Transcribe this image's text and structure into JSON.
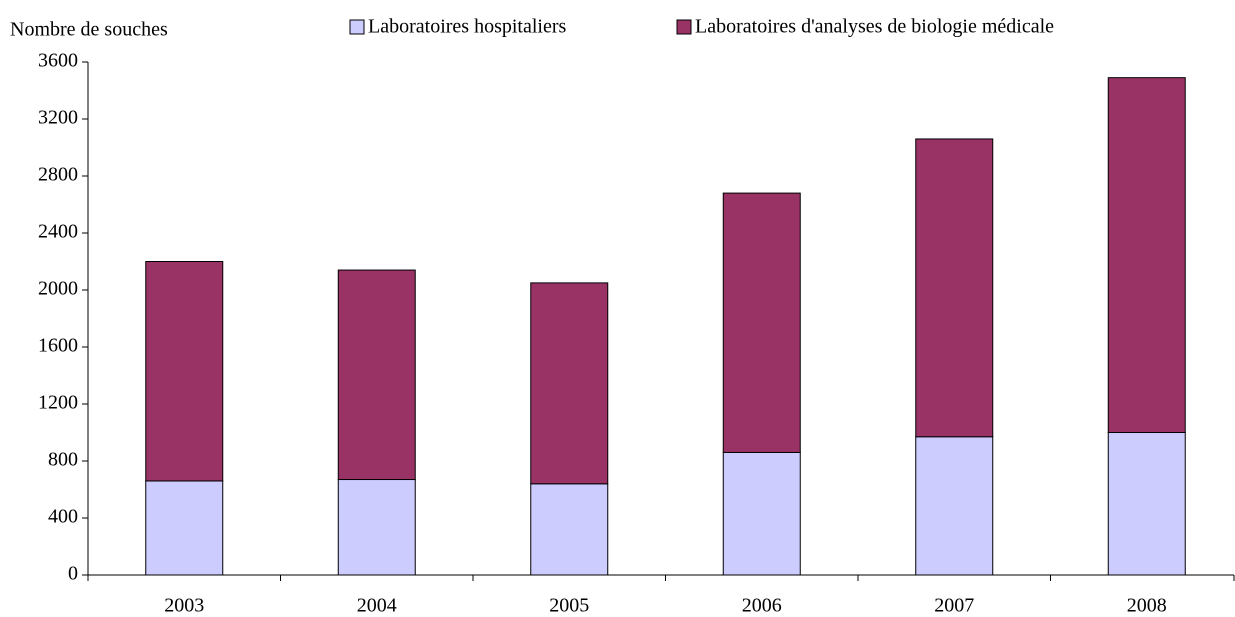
{
  "chart_data": {
    "type": "stacked_bar",
    "y_label": "Nombre de souches",
    "categories": [
      "2003",
      "2004",
      "2005",
      "2006",
      "2007",
      "2008"
    ],
    "series": [
      {
        "name": "Laboratoires hospitaliers",
        "color": "#ccccff",
        "values": [
          660,
          670,
          640,
          860,
          970,
          1000
        ]
      },
      {
        "name": "Laboratoires d'analyses de biologie médicale",
        "color": "#993366",
        "values": [
          1540,
          1470,
          1410,
          1820,
          2090,
          2490
        ]
      }
    ],
    "ylim": [
      0,
      3600
    ],
    "yticks": [
      0,
      400,
      800,
      1200,
      1600,
      2000,
      2400,
      2800,
      3200,
      3600
    ],
    "grid": false
  }
}
